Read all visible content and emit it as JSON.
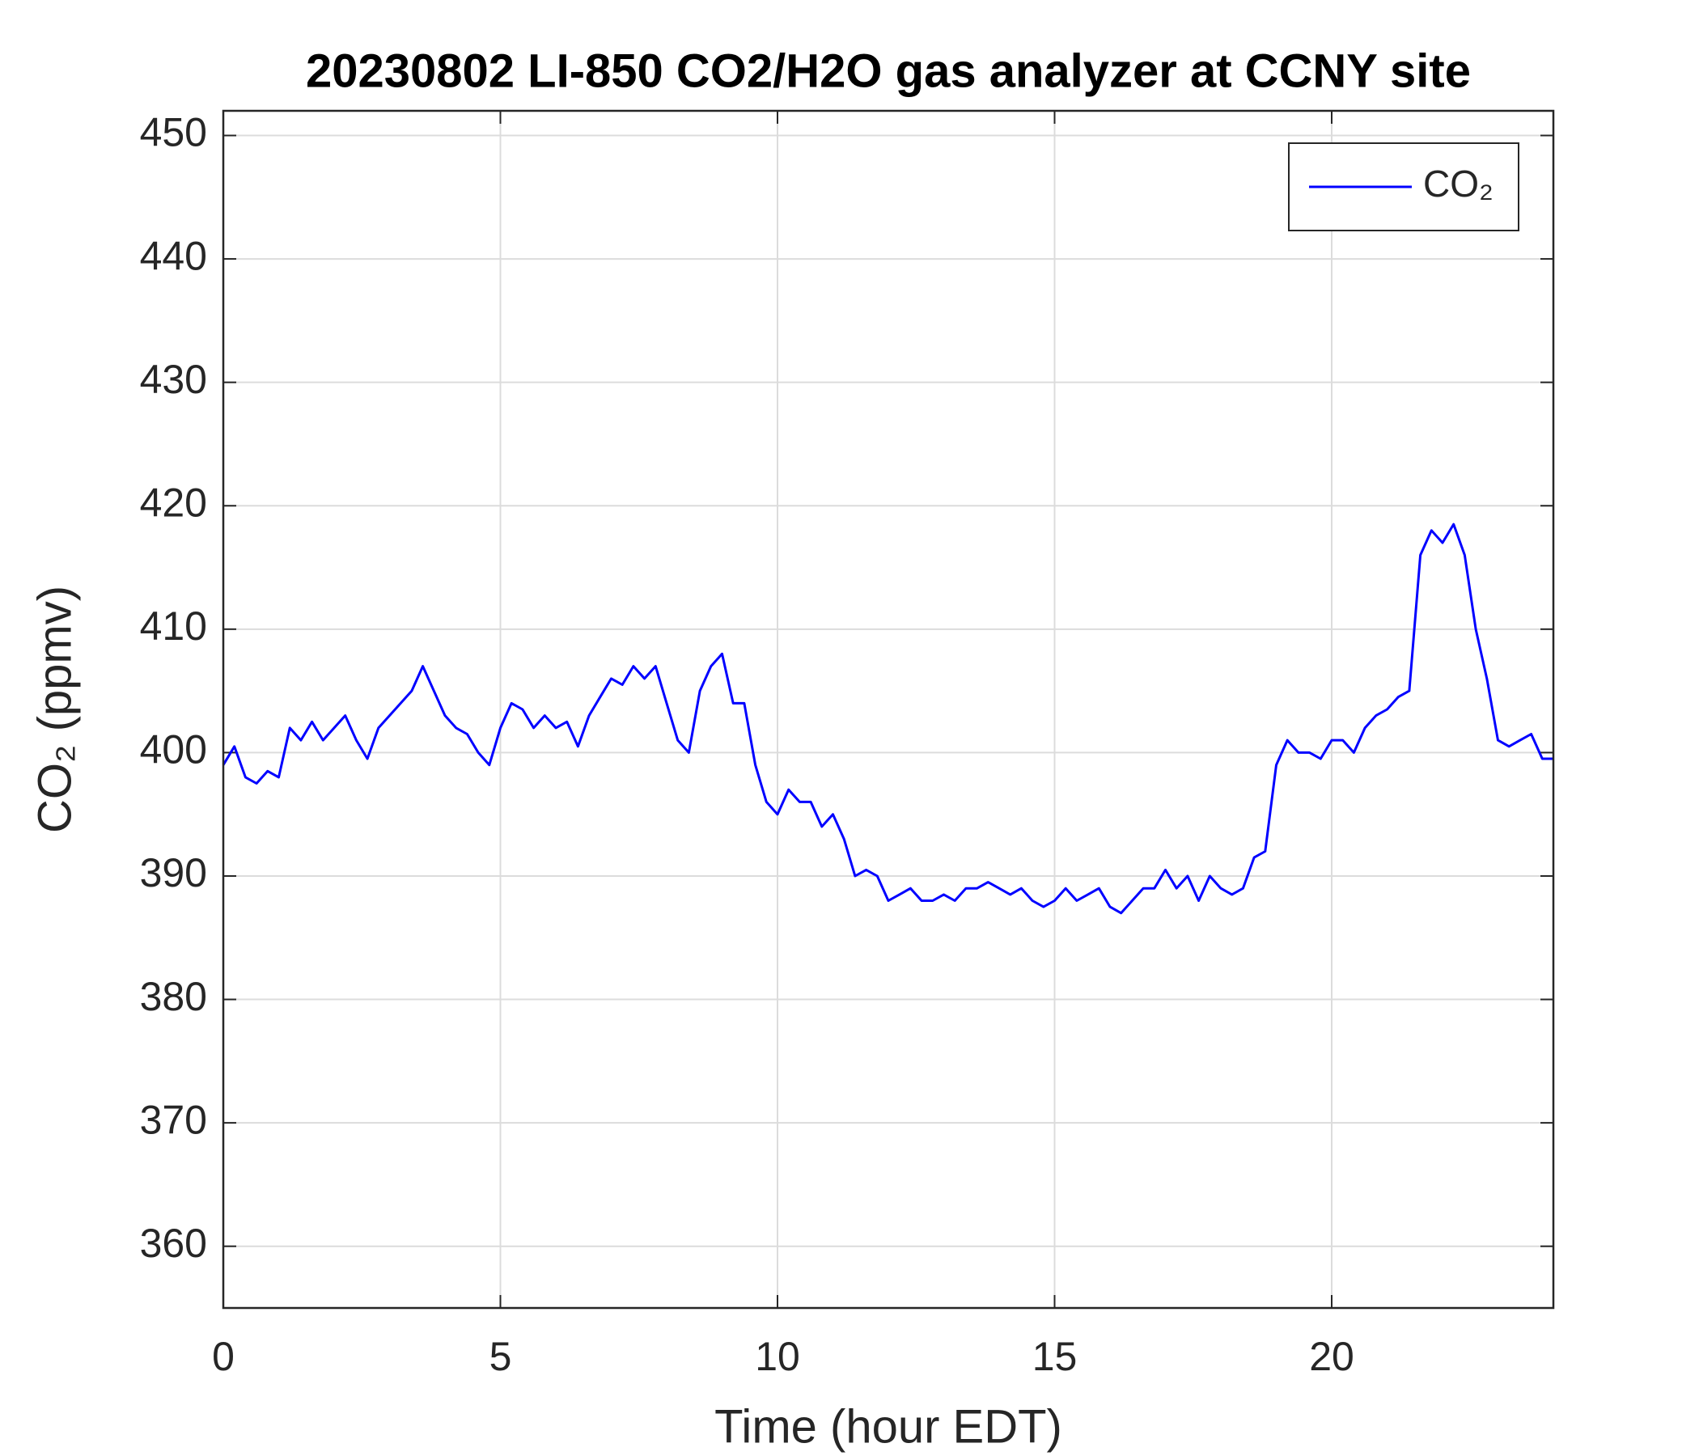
{
  "chart_data": {
    "type": "line",
    "title": "20230802 LI-850 CO2/H2O gas analyzer at CCNY site",
    "xlabel": "Time (hour EDT)",
    "ylabel": "CO₂ (ppmv)",
    "xlim": [
      0,
      24
    ],
    "ylim": [
      355,
      452
    ],
    "xticks": [
      0,
      5,
      10,
      15,
      20
    ],
    "yticks": [
      360,
      370,
      380,
      390,
      400,
      410,
      420,
      430,
      440,
      450
    ],
    "grid": true,
    "legend": "upper right",
    "x": [
      0,
      0.2,
      0.4,
      0.6,
      0.8,
      1.0,
      1.2,
      1.4,
      1.6,
      1.8,
      2.0,
      2.2,
      2.4,
      2.6,
      2.8,
      3.0,
      3.2,
      3.4,
      3.6,
      3.8,
      4.0,
      4.2,
      4.4,
      4.6,
      4.8,
      5.0,
      5.2,
      5.4,
      5.6,
      5.8,
      6.0,
      6.2,
      6.4,
      6.6,
      6.8,
      7.0,
      7.2,
      7.4,
      7.6,
      7.8,
      8.0,
      8.2,
      8.4,
      8.6,
      8.8,
      9.0,
      9.2,
      9.4,
      9.6,
      9.8,
      10.0,
      10.2,
      10.4,
      10.6,
      10.8,
      11.0,
      11.2,
      11.4,
      11.6,
      11.8,
      12.0,
      12.2,
      12.4,
      12.6,
      12.8,
      13.0,
      13.2,
      13.4,
      13.6,
      13.8,
      14.0,
      14.2,
      14.4,
      14.6,
      14.8,
      15.0,
      15.2,
      15.4,
      15.6,
      15.8,
      16.0,
      16.2,
      16.4,
      16.6,
      16.8,
      17.0,
      17.2,
      17.4,
      17.6,
      17.8,
      18.0,
      18.2,
      18.4,
      18.6,
      18.8,
      19.0,
      19.2,
      19.4,
      19.6,
      19.8,
      20.0,
      20.2,
      20.4,
      20.6,
      20.8,
      21.0,
      21.2,
      21.4,
      21.6,
      21.8,
      22.0,
      22.2,
      22.4,
      22.6,
      22.8,
      23.0,
      23.2,
      23.4,
      23.6,
      23.8,
      24.0
    ],
    "series": [
      {
        "name": "CO₂",
        "color": "#0000ff",
        "values": [
          399,
          400.5,
          398,
          397.5,
          398.5,
          398,
          402,
          401,
          402.5,
          401,
          402,
          403,
          401,
          399.5,
          402,
          403,
          404,
          405,
          407,
          405,
          403,
          402,
          401.5,
          400,
          399,
          402,
          404,
          403.5,
          402,
          403,
          402,
          402.5,
          400.5,
          403,
          404.5,
          406,
          405.5,
          407,
          406,
          407,
          404,
          401,
          400,
          405,
          407,
          408,
          404,
          404,
          399,
          396,
          395,
          397,
          396,
          396,
          394,
          395,
          393,
          390,
          390.5,
          390,
          388,
          388.5,
          389,
          388,
          388,
          388.5,
          388,
          389,
          389,
          389.5,
          389,
          388.5,
          389,
          388,
          387.5,
          388,
          389,
          388,
          388.5,
          389,
          387.5,
          387,
          388,
          389,
          389,
          390.5,
          389,
          390,
          388,
          390,
          389,
          388.5,
          389,
          391.5,
          392,
          399,
          401,
          400,
          400,
          399.5,
          401,
          401,
          400,
          402,
          403,
          403.5,
          404.5,
          405,
          416,
          418,
          417,
          418.5,
          416,
          410,
          406,
          401,
          400.5,
          401,
          401.5,
          399.5,
          399.5
        ]
      }
    ]
  }
}
